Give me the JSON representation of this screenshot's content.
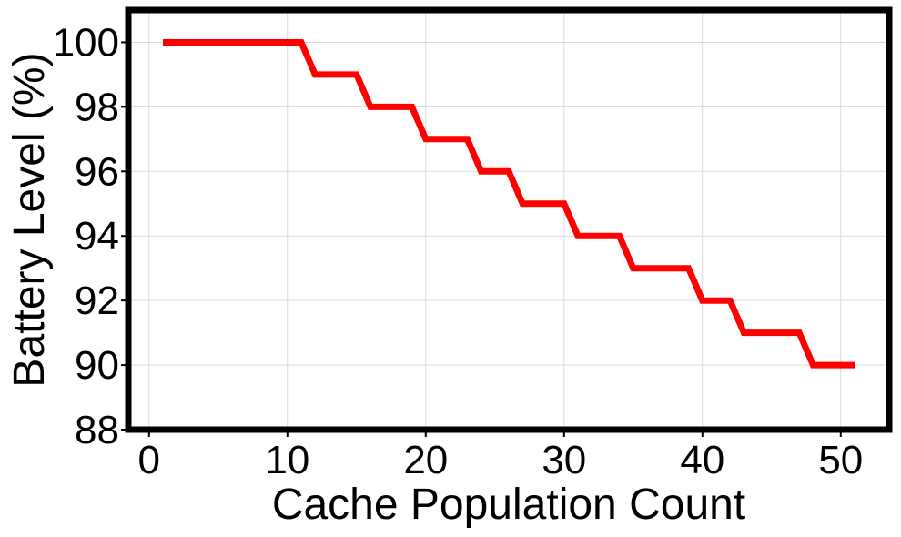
{
  "chart_data": {
    "type": "line",
    "xlabel": "Cache Population Count",
    "ylabel": "Battery Level (%)",
    "xlim": [
      -1.5,
      53.5
    ],
    "ylim": [
      88,
      101
    ],
    "xticks": [
      0,
      10,
      20,
      30,
      40,
      50
    ],
    "yticks": [
      88,
      90,
      92,
      94,
      96,
      98,
      100
    ],
    "grid": true,
    "series": [
      {
        "color": "#ff0000",
        "x": [
          1,
          11,
          12,
          15,
          16,
          19,
          20,
          23,
          24,
          26,
          27,
          30,
          31,
          34,
          35,
          39,
          40,
          42,
          43,
          47,
          48,
          51
        ],
        "y": [
          100,
          100,
          99,
          99,
          98,
          98,
          97,
          97,
          96,
          96,
          95,
          95,
          94,
          94,
          93,
          93,
          92,
          92,
          91,
          91,
          90,
          90
        ]
      }
    ]
  }
}
